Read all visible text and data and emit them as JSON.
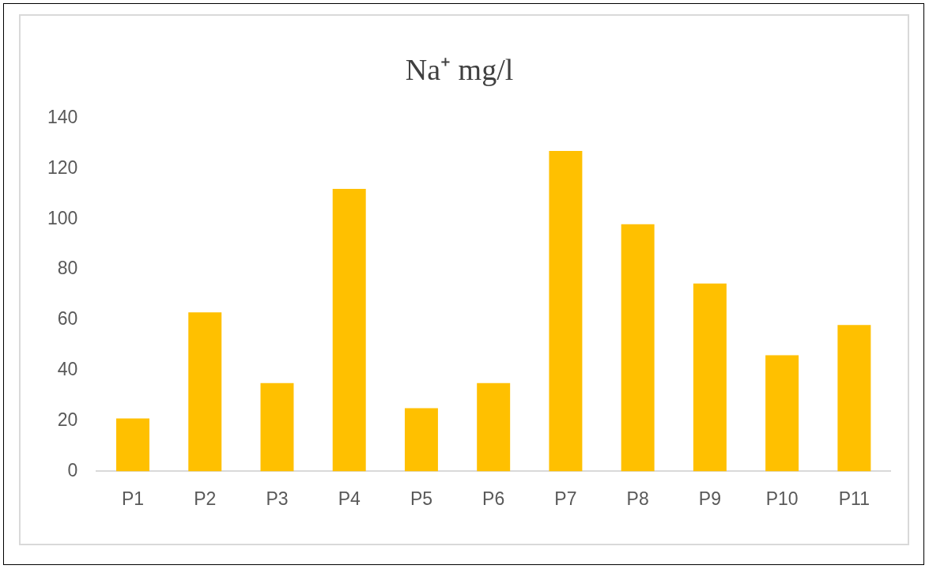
{
  "chart_data": {
    "type": "bar",
    "title": "Na⁺ mg/l",
    "categories": [
      "P1",
      "P2",
      "P3",
      "P4",
      "P5",
      "P6",
      "P7",
      "P8",
      "P9",
      "P10",
      "P11"
    ],
    "values": [
      21,
      63,
      35,
      112,
      25,
      35,
      127,
      98,
      74.5,
      46,
      58
    ],
    "color": "#ffc000",
    "ylim": [
      0,
      140
    ],
    "yticks": [
      0,
      20,
      40,
      60,
      80,
      100,
      120,
      140
    ],
    "grid": false,
    "legend": false
  }
}
